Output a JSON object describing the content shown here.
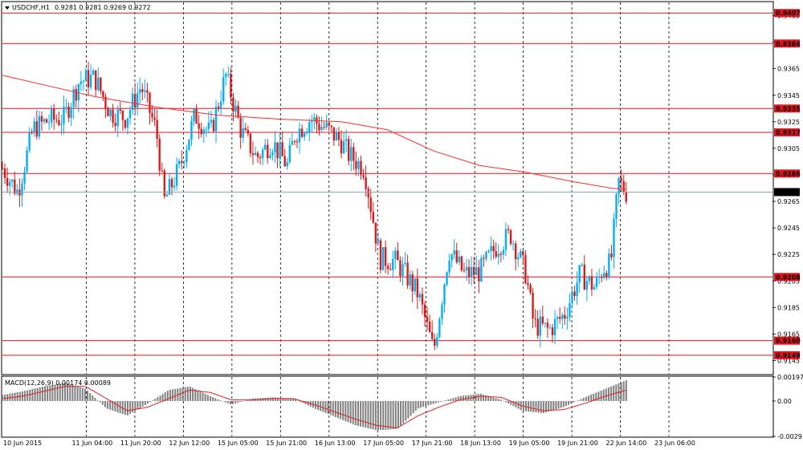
{
  "header": {
    "symbol": "USDCHF,H1",
    "ohlc": "0.9281 0.9281 0.9269 0.9272"
  },
  "macd_header": "MACD(12,26,9) 0.00174 0.00089",
  "colors": {
    "bull": "#00b0f0",
    "bear": "#d81b1b",
    "level": "#e0141e",
    "ma": "#ff2a2a",
    "hist": "#808080",
    "signal": "#e02020",
    "current": "#87a7bf",
    "label_bg": "#e0141e",
    "price_bg": "#000000"
  },
  "chart_data": [
    {
      "type": "candlestick",
      "title": "USDCHF,H1",
      "ylim": [
        0.9135,
        0.9415
      ],
      "price_ticks": [
        "0.9405",
        "0.9385",
        "0.9365",
        "0.9345",
        "0.9325",
        "0.9305",
        "0.9285",
        "0.9265",
        "0.9245",
        "0.9225",
        "0.9205",
        "0.9185",
        "0.9165",
        "0.9145"
      ],
      "levels": [
        "0.9407",
        "0.9384",
        "0.9335",
        "0.9317",
        "0.9286",
        "0.9208",
        "0.9160",
        "0.9149"
      ],
      "current_price": "0.9272",
      "time_labels": [
        "10 Jun 2015",
        "11 Jun 04:00",
        "11 Jun 20:00",
        "12 Jun 12:00",
        "15 Jun 05:00",
        "15 Jun 21:00",
        "16 Jun 13:00",
        "17 Jun 05:00",
        "17 Jun 21:00",
        "18 Jun 13:00",
        "19 Jun 05:00",
        "19 Jun 21:00",
        "22 Jun 14:00",
        "23 Jun 06:00"
      ],
      "moving_average": [
        {
          "t": 0,
          "v": 0.936
        },
        {
          "t": 0.06,
          "v": 0.9352
        },
        {
          "t": 0.12,
          "v": 0.9344
        },
        {
          "t": 0.2,
          "v": 0.9336
        },
        {
          "t": 0.28,
          "v": 0.933
        },
        {
          "t": 0.36,
          "v": 0.9327
        },
        {
          "t": 0.44,
          "v": 0.9325
        },
        {
          "t": 0.5,
          "v": 0.9319
        },
        {
          "t": 0.56,
          "v": 0.9303
        },
        {
          "t": 0.62,
          "v": 0.9292
        },
        {
          "t": 0.68,
          "v": 0.9287
        },
        {
          "t": 0.74,
          "v": 0.928
        },
        {
          "t": 0.79,
          "v": 0.9275
        },
        {
          "t": 0.81,
          "v": 0.9274
        }
      ],
      "path": [
        {
          "t": 0,
          "v": 0.929
        },
        {
          "t": 0.02,
          "v": 0.9272
        },
        {
          "t": 0.04,
          "v": 0.932
        },
        {
          "t": 0.06,
          "v": 0.9326
        },
        {
          "t": 0.08,
          "v": 0.9328
        },
        {
          "t": 0.1,
          "v": 0.9356
        },
        {
          "t": 0.12,
          "v": 0.9358
        },
        {
          "t": 0.14,
          "v": 0.9332
        },
        {
          "t": 0.16,
          "v": 0.9328
        },
        {
          "t": 0.18,
          "v": 0.9352
        },
        {
          "t": 0.2,
          "v": 0.9318
        },
        {
          "t": 0.21,
          "v": 0.9265
        },
        {
          "t": 0.23,
          "v": 0.929
        },
        {
          "t": 0.25,
          "v": 0.933
        },
        {
          "t": 0.27,
          "v": 0.9316
        },
        {
          "t": 0.29,
          "v": 0.936
        },
        {
          "t": 0.31,
          "v": 0.9318
        },
        {
          "t": 0.33,
          "v": 0.9298
        },
        {
          "t": 0.35,
          "v": 0.931
        },
        {
          "t": 0.37,
          "v": 0.9292
        },
        {
          "t": 0.38,
          "v": 0.9316
        },
        {
          "t": 0.4,
          "v": 0.9327
        },
        {
          "t": 0.42,
          "v": 0.932
        },
        {
          "t": 0.44,
          "v": 0.931
        },
        {
          "t": 0.45,
          "v": 0.93
        },
        {
          "t": 0.47,
          "v": 0.929
        },
        {
          "t": 0.49,
          "v": 0.9222
        },
        {
          "t": 0.51,
          "v": 0.922
        },
        {
          "t": 0.52,
          "v": 0.9213
        },
        {
          "t": 0.54,
          "v": 0.9195
        },
        {
          "t": 0.56,
          "v": 0.9152
        },
        {
          "t": 0.58,
          "v": 0.9228
        },
        {
          "t": 0.6,
          "v": 0.921
        },
        {
          "t": 0.62,
          "v": 0.9212
        },
        {
          "t": 0.64,
          "v": 0.923
        },
        {
          "t": 0.66,
          "v": 0.924
        },
        {
          "t": 0.68,
          "v": 0.921
        },
        {
          "t": 0.69,
          "v": 0.9172
        },
        {
          "t": 0.71,
          "v": 0.9168
        },
        {
          "t": 0.73,
          "v": 0.918
        },
        {
          "t": 0.75,
          "v": 0.921
        },
        {
          "t": 0.77,
          "v": 0.92
        },
        {
          "t": 0.78,
          "v": 0.9215
        },
        {
          "t": 0.79,
          "v": 0.9218
        },
        {
          "t": 0.8,
          "v": 0.928
        },
        {
          "t": 0.81,
          "v": 0.9272
        }
      ]
    },
    {
      "type": "bar",
      "title": "MACD(12,26,9) 0.00174 0.00089",
      "ylim": [
        -0.0029,
        0.00197
      ],
      "ticks": [
        "0.00197",
        "0.00",
        "-0.0029"
      ],
      "series": [
        {
          "name": "MACD",
          "values": [
            0.0005,
            0.0008,
            0.0012,
            0.0015,
            0.001,
            -0.0006,
            -0.0012,
            -0.0002,
            0.0009,
            0.0012,
            0.0004,
            -0.0003,
            0.0002,
            0.0003,
            0.0002,
            -0.0006,
            -0.0013,
            -0.002,
            -0.0024,
            -0.0023,
            -0.0006,
            -0.0001,
            0.0004,
            0.0006,
            0.0001,
            -0.0008,
            -0.001,
            -0.0005,
            0.0003,
            0.001,
            0.0017
          ]
        },
        {
          "name": "Signal",
          "values": [
            0.0002,
            0.0004,
            0.0008,
            0.0012,
            0.0012,
            0.0002,
            -0.0008,
            -0.0005,
            0.0002,
            0.0009,
            0.0007,
            0.0001,
            0.0001,
            0.0002,
            0.0002,
            -0.0003,
            -0.0009,
            -0.0015,
            -0.002,
            -0.0022,
            -0.0012,
            -0.0005,
            0.0001,
            0.0004,
            0.0003,
            -0.0004,
            -0.0008,
            -0.0007,
            -0.0002,
            0.0004,
            0.0009
          ]
        }
      ]
    }
  ]
}
